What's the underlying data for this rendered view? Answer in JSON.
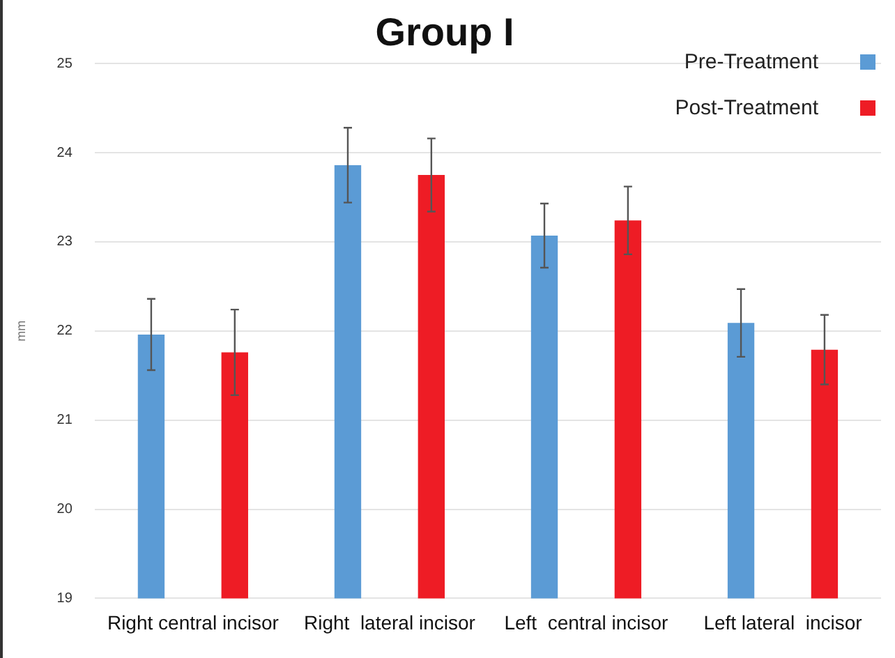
{
  "chart_data": {
    "type": "bar",
    "title": "Group I",
    "ylabel": "mm",
    "categories": [
      "Right central incisor",
      "Right  lateral incisor",
      "Left  central incisor",
      "Left lateral  incisor"
    ],
    "series": [
      {
        "name": "Pre-Treatment",
        "color": "#5b9bd5",
        "values": [
          21.96,
          23.86,
          23.07,
          22.09
        ],
        "errors": [
          0.4,
          0.42,
          0.36,
          0.38
        ]
      },
      {
        "name": "Post-Treatment",
        "color": "#ee1c25",
        "values": [
          21.76,
          23.75,
          23.24,
          21.79
        ],
        "errors": [
          0.48,
          0.41,
          0.38,
          0.39
        ]
      }
    ],
    "ylim": [
      19,
      25
    ],
    "yticks": [
      19,
      20,
      21,
      22,
      23,
      24,
      25
    ],
    "grid": "y",
    "legend": "top right"
  }
}
